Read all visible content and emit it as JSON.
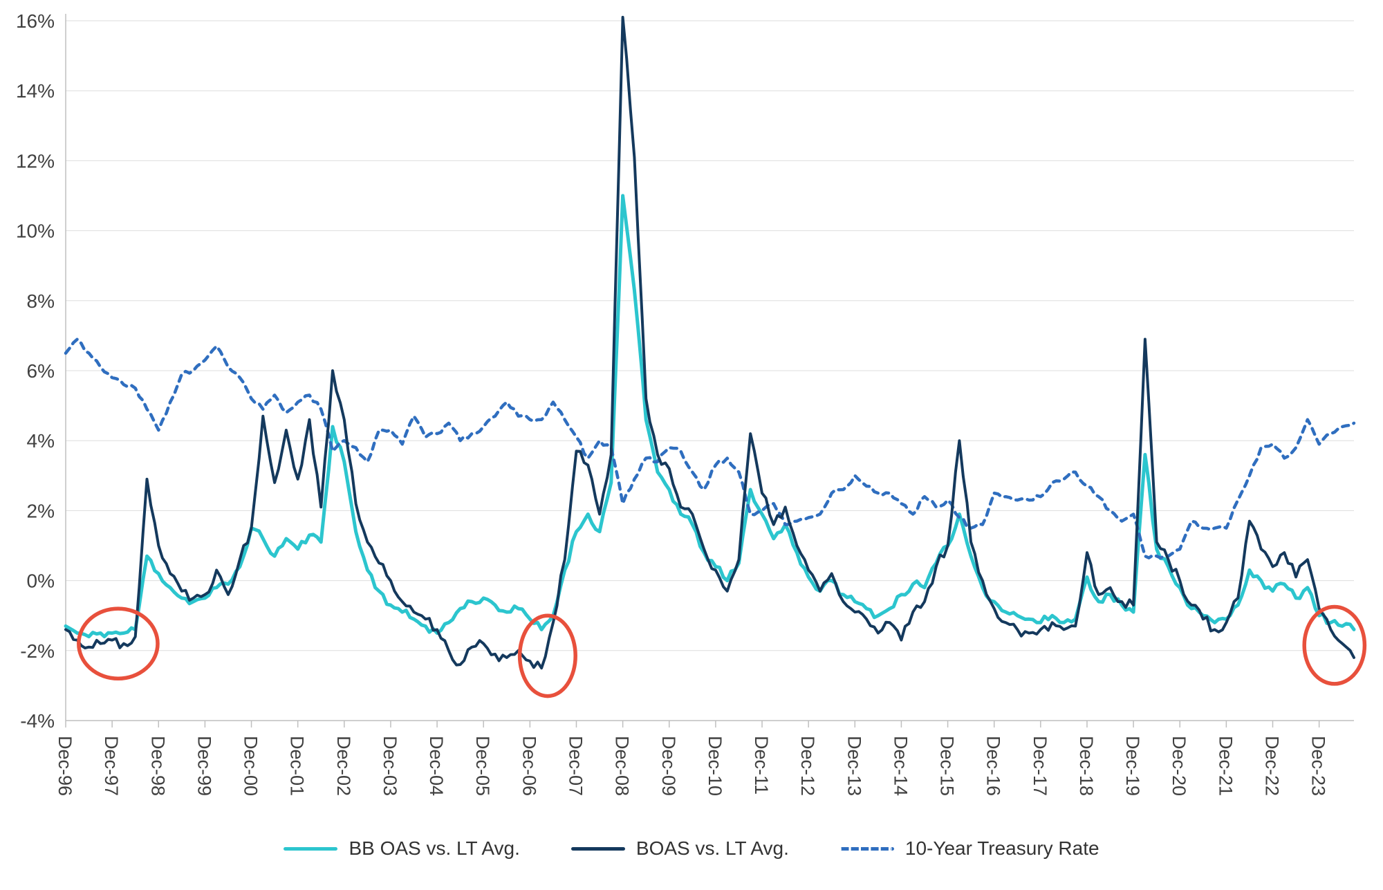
{
  "chart_data": {
    "type": "line",
    "title": "",
    "x_tick_labels": [
      "Dec-96",
      "Dec-97",
      "Dec-98",
      "Dec-99",
      "Dec-00",
      "Dec-01",
      "Dec-02",
      "Dec-03",
      "Dec-04",
      "Dec-05",
      "Dec-06",
      "Dec-07",
      "Dec-08",
      "Dec-09",
      "Dec-10",
      "Dec-11",
      "Dec-12",
      "Dec-13",
      "Dec-14",
      "Dec-15",
      "Dec-16",
      "Dec-17",
      "Dec-18",
      "Dec-19",
      "Dec-20",
      "Dec-21",
      "Dec-22",
      "Dec-23"
    ],
    "x_start_year": 1996.92,
    "x_step_years": 0.25,
    "x_tick_interval_years": 1,
    "ylim": [
      -4,
      16
    ],
    "y_tick_step": 2,
    "y_tick_suffix": "%",
    "grid": true,
    "legend_position": "bottom",
    "series": [
      {
        "name": "BB OAS vs. LT Avg.",
        "color": "#2CC5CE",
        "style": "solid",
        "values": [
          -1.3,
          -1.5,
          -1.6,
          -1.5,
          -1.5,
          -1.5,
          -1.4,
          0.7,
          0.2,
          -0.2,
          -0.5,
          -0.6,
          -0.5,
          -0.2,
          -0.1,
          0.4,
          1.5,
          1.2,
          0.7,
          1.2,
          0.9,
          1.3,
          1.1,
          4.4,
          3.4,
          1.4,
          0.3,
          -0.3,
          -0.7,
          -0.9,
          -1.1,
          -1.3,
          -1.5,
          -1.2,
          -0.8,
          -0.6,
          -0.5,
          -0.7,
          -0.9,
          -0.8,
          -1.1,
          -1.4,
          -1.0,
          0.3,
          1.4,
          1.9,
          1.4,
          2.8,
          11.0,
          8.3,
          4.6,
          3.1,
          2.6,
          1.9,
          1.6,
          0.8,
          0.4,
          0.0,
          0.5,
          2.6,
          1.9,
          1.2,
          1.6,
          0.8,
          0.1,
          -0.3,
          0.0,
          -0.4,
          -0.6,
          -0.8,
          -1.0,
          -0.8,
          -0.4,
          -0.1,
          -0.2,
          0.5,
          1.0,
          1.9,
          0.7,
          -0.2,
          -0.6,
          -0.9,
          -1.0,
          -1.1,
          -1.2,
          -1.0,
          -1.2,
          -1.1,
          0.1,
          -0.6,
          -0.4,
          -0.7,
          -0.9,
          3.6,
          0.9,
          0.4,
          -0.2,
          -0.8,
          -1.0,
          -1.2,
          -1.1,
          -0.7,
          0.3,
          0.0,
          -0.3,
          -0.1,
          -0.5,
          -0.2,
          -1.0,
          -1.2,
          -1.3,
          -1.4
        ]
      },
      {
        "name": "BOAS vs. LT Avg.",
        "color": "#14395D",
        "style": "solid",
        "values": [
          -1.4,
          -1.7,
          -1.9,
          -1.8,
          -1.7,
          -1.8,
          -1.6,
          2.9,
          1.0,
          0.2,
          -0.3,
          -0.5,
          -0.4,
          0.3,
          -0.4,
          0.6,
          1.5,
          4.7,
          2.8,
          4.3,
          2.9,
          4.6,
          2.1,
          6.0,
          4.6,
          2.2,
          1.1,
          0.5,
          0.0,
          -0.6,
          -0.9,
          -1.1,
          -1.4,
          -2.0,
          -2.4,
          -1.9,
          -1.8,
          -2.1,
          -2.2,
          -2.0,
          -2.3,
          -2.5,
          -1.2,
          0.6,
          3.7,
          3.3,
          1.9,
          3.6,
          16.1,
          12.1,
          5.2,
          3.6,
          3.2,
          2.1,
          1.9,
          0.9,
          0.3,
          -0.3,
          0.6,
          4.2,
          2.5,
          1.6,
          2.1,
          1.0,
          0.3,
          -0.3,
          0.2,
          -0.6,
          -0.9,
          -1.1,
          -1.5,
          -1.2,
          -1.7,
          -0.9,
          -0.6,
          0.4,
          1.0,
          4.0,
          1.1,
          0.0,
          -0.8,
          -1.2,
          -1.4,
          -1.5,
          -1.4,
          -1.2,
          -1.4,
          -1.3,
          0.8,
          -0.4,
          -0.2,
          -0.6,
          -0.7,
          6.9,
          1.1,
          0.6,
          0.0,
          -0.7,
          -1.1,
          -1.4,
          -1.2,
          -0.5,
          1.7,
          0.9,
          0.4,
          0.8,
          0.1,
          0.6,
          -0.8,
          -1.4,
          -1.8,
          -2.2
        ]
      },
      {
        "name": "10-Year Treasury Rate",
        "color": "#2F6EBF",
        "style": "dashed",
        "values": [
          6.5,
          6.9,
          6.5,
          6.1,
          5.8,
          5.6,
          5.5,
          4.9,
          4.3,
          5.1,
          5.9,
          6.0,
          6.3,
          6.7,
          6.1,
          5.8,
          5.2,
          4.9,
          5.3,
          4.8,
          5.1,
          5.3,
          4.9,
          3.7,
          4.0,
          3.8,
          3.4,
          4.3,
          4.3,
          3.9,
          4.7,
          4.1,
          4.2,
          4.5,
          4.0,
          4.2,
          4.4,
          4.7,
          5.1,
          4.7,
          4.6,
          4.6,
          5.1,
          4.6,
          4.1,
          3.5,
          4.0,
          3.8,
          2.2,
          2.9,
          3.5,
          3.4,
          3.8,
          3.7,
          3.1,
          2.6,
          3.3,
          3.5,
          3.1,
          1.9,
          2.0,
          2.2,
          1.6,
          1.7,
          1.8,
          1.9,
          2.5,
          2.6,
          3.0,
          2.7,
          2.5,
          2.5,
          2.2,
          1.9,
          2.4,
          2.1,
          2.3,
          1.8,
          1.5,
          1.6,
          2.5,
          2.4,
          2.3,
          2.3,
          2.4,
          2.8,
          2.9,
          3.1,
          2.7,
          2.4,
          2.0,
          1.7,
          1.9,
          0.7,
          0.7,
          0.7,
          0.9,
          1.7,
          1.5,
          1.5,
          1.5,
          2.3,
          3.0,
          3.8,
          3.9,
          3.5,
          3.8,
          4.6,
          3.9,
          4.2,
          4.4,
          4.5
        ]
      }
    ],
    "annotations": [
      {
        "type": "ellipse",
        "x_year": 1998.05,
        "y": -1.8,
        "rx_years": 0.85,
        "ry_value": 1.0
      },
      {
        "type": "ellipse",
        "x_year": 2007.3,
        "y": -2.15,
        "rx_years": 0.6,
        "ry_value": 1.15
      },
      {
        "type": "ellipse",
        "x_year": 2024.25,
        "y": -1.85,
        "rx_years": 0.65,
        "ry_value": 1.1
      }
    ]
  },
  "colors": {
    "background": "#ffffff",
    "grid": "#dddddd",
    "axis": "#bfbfbf",
    "text": "#404040",
    "annotation": "#E8503C"
  }
}
